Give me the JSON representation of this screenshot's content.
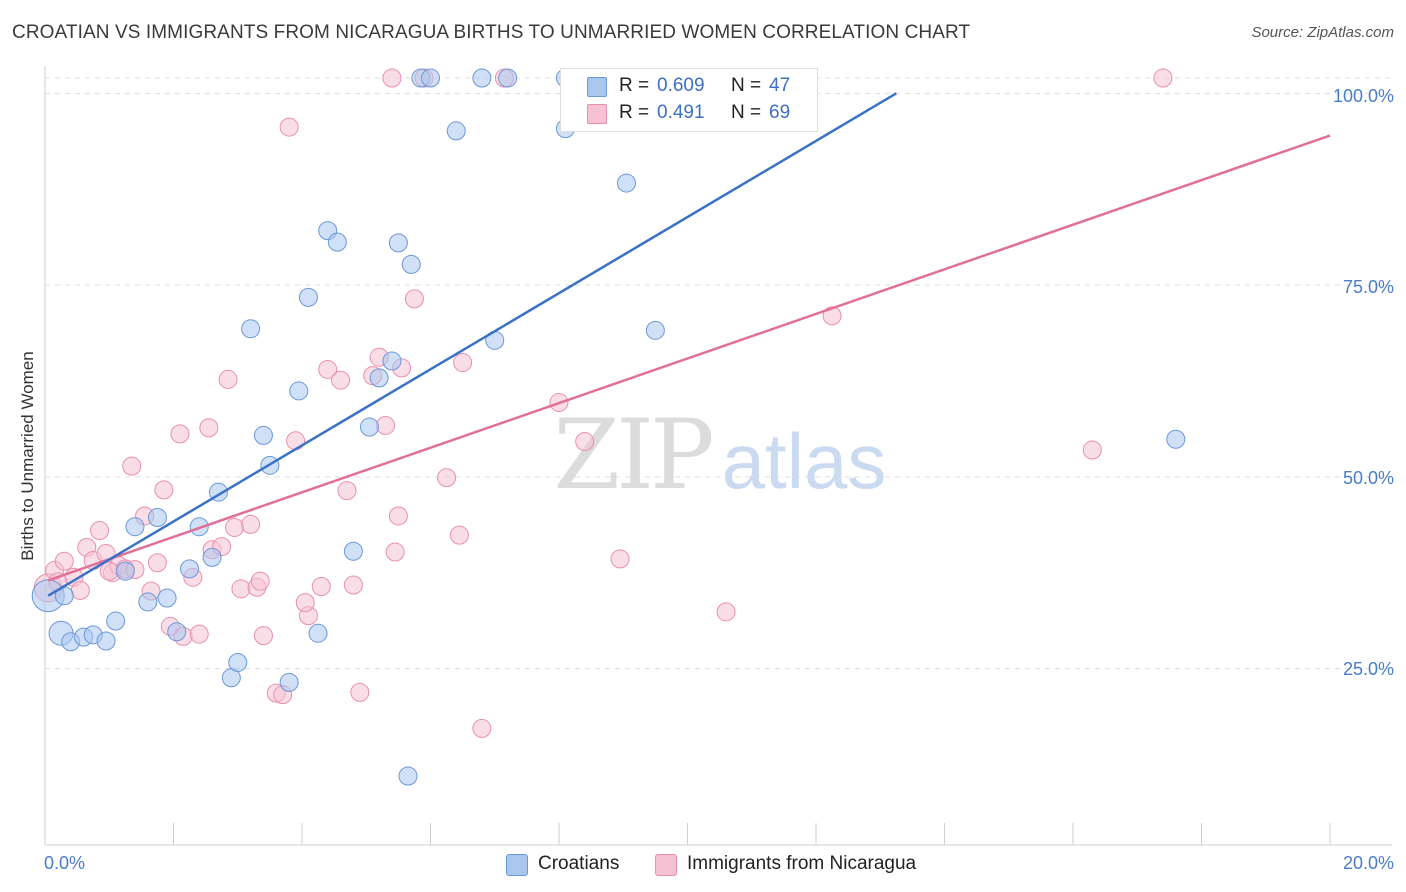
{
  "title": "CROATIAN VS IMMIGRANTS FROM NICARAGUA BIRTHS TO UNMARRIED WOMEN CORRELATION CHART",
  "source": "Source: ZipAtlas.com",
  "watermark": {
    "zip": "ZIP",
    "atlas": "atlas"
  },
  "legend": {
    "rows": [
      {
        "r_label": "R = ",
        "r_value": "0.609",
        "n_label": "N = ",
        "n_value": "47"
      },
      {
        "r_label": "R = ",
        "r_value": "0.491",
        "n_label": "N = ",
        "n_value": "69"
      }
    ]
  },
  "bottom_legend": [
    "Croatians",
    "Immigrants from Nicaragua"
  ],
  "colors": {
    "blue_fill": "#a9c6ee",
    "blue_stroke": "#6a98d8",
    "blue_line": "#3a72c8",
    "pink_fill": "#f6c2d3",
    "pink_stroke": "#e98fae",
    "pink_line": "#e0709a",
    "grid": "#dddddd",
    "tick_text": "#4a7cc9"
  },
  "chart_data": {
    "type": "scatter",
    "title": "CROATIAN VS IMMIGRANTS FROM NICARAGUA BIRTHS TO UNMARRIED WOMEN CORRELATION CHART",
    "xlabel": "",
    "ylabel": "Births to Unmarried Women",
    "xlim": [
      0,
      20
    ],
    "ylim": [
      2,
      102
    ],
    "x_tick_labels": [
      "0.0%",
      "20.0%"
    ],
    "y_ticks": [
      25,
      50,
      75,
      100
    ],
    "y_tick_labels": [
      "25.0%",
      "50.0%",
      "75.0%",
      "100.0%"
    ],
    "series": [
      {
        "name": "Croatians",
        "color": "#6a98d8",
        "trendline": {
          "x": [
            0.05,
            13.25
          ],
          "y": [
            34.5,
            100.0
          ]
        },
        "points": [
          [
            0.05,
            34.5,
            16
          ],
          [
            0.25,
            29.6,
            12
          ],
          [
            0.4,
            28.5,
            9
          ],
          [
            0.6,
            29.1,
            9
          ],
          [
            0.75,
            29.4,
            9
          ],
          [
            0.95,
            28.6,
            9
          ],
          [
            1.1,
            31.2,
            9
          ],
          [
            1.25,
            37.7,
            9
          ],
          [
            1.4,
            43.5,
            9
          ],
          [
            1.6,
            33.7,
            9
          ],
          [
            1.75,
            44.7,
            9
          ],
          [
            1.9,
            34.2,
            9
          ],
          [
            2.05,
            29.8,
            9
          ],
          [
            2.25,
            38.0,
            9
          ],
          [
            2.4,
            43.5,
            9
          ],
          [
            2.6,
            39.5,
            9
          ],
          [
            2.7,
            48.0,
            9
          ],
          [
            2.9,
            23.8,
            9
          ],
          [
            3.0,
            25.8,
            9
          ],
          [
            3.2,
            69.3,
            9
          ],
          [
            3.4,
            55.4,
            9
          ],
          [
            3.5,
            51.5,
            9
          ],
          [
            3.8,
            23.2,
            9
          ],
          [
            3.95,
            61.2,
            9
          ],
          [
            4.1,
            73.4,
            9
          ],
          [
            4.25,
            29.6,
            9
          ],
          [
            4.4,
            82.1,
            9
          ],
          [
            4.55,
            80.6,
            9
          ],
          [
            4.8,
            40.3,
            9
          ],
          [
            5.05,
            56.5,
            9
          ],
          [
            5.2,
            62.9,
            9
          ],
          [
            5.4,
            65.1,
            9
          ],
          [
            5.5,
            80.5,
            9
          ],
          [
            5.65,
            11.0,
            9
          ],
          [
            5.7,
            77.7,
            9
          ],
          [
            5.85,
            102.0,
            9
          ],
          [
            6.0,
            102.0,
            9
          ],
          [
            6.4,
            95.1,
            9
          ],
          [
            6.8,
            102.0,
            9
          ],
          [
            7.2,
            102.0,
            9
          ],
          [
            7.0,
            67.8,
            9
          ],
          [
            8.1,
            95.4,
            9
          ],
          [
            8.1,
            102.0,
            9
          ],
          [
            9.05,
            88.3,
            9
          ],
          [
            9.5,
            69.1,
            9
          ],
          [
            17.6,
            54.9,
            9
          ],
          [
            0.3,
            34.5,
            9
          ]
        ]
      },
      {
        "name": "Immigrants from Nicaragua",
        "color": "#e98fae",
        "trendline": {
          "x": [
            0.05,
            20.0
          ],
          "y": [
            36.5,
            94.5
          ]
        },
        "points": [
          [
            0.05,
            35.5,
            14
          ],
          [
            0.15,
            37.8,
            9
          ],
          [
            0.3,
            39.0,
            9
          ],
          [
            0.45,
            36.9,
            9
          ],
          [
            0.55,
            35.2,
            9
          ],
          [
            0.65,
            40.8,
            9
          ],
          [
            0.75,
            39.1,
            9
          ],
          [
            0.85,
            43.0,
            9
          ],
          [
            0.95,
            40.0,
            9
          ],
          [
            1.05,
            37.5,
            9
          ],
          [
            1.15,
            38.4,
            9
          ],
          [
            1.25,
            38.0,
            9
          ],
          [
            1.35,
            51.4,
            9
          ],
          [
            1.4,
            37.9,
            9
          ],
          [
            1.55,
            44.9,
            9
          ],
          [
            1.65,
            35.1,
            9
          ],
          [
            1.75,
            38.8,
            9
          ],
          [
            1.85,
            48.3,
            9
          ],
          [
            1.95,
            30.5,
            9
          ],
          [
            2.1,
            55.6,
            9
          ],
          [
            2.15,
            29.2,
            9
          ],
          [
            2.3,
            36.9,
            9
          ],
          [
            2.4,
            29.5,
            9
          ],
          [
            2.55,
            56.4,
            9
          ],
          [
            2.6,
            40.5,
            9
          ],
          [
            2.85,
            62.7,
            9
          ],
          [
            2.95,
            43.4,
            9
          ],
          [
            3.05,
            35.4,
            9
          ],
          [
            3.2,
            43.8,
            9
          ],
          [
            3.3,
            35.6,
            9
          ],
          [
            3.4,
            29.3,
            9
          ],
          [
            3.6,
            21.8,
            9
          ],
          [
            3.7,
            21.6,
            9
          ],
          [
            3.8,
            95.6,
            9
          ],
          [
            3.9,
            54.7,
            9
          ],
          [
            4.1,
            31.9,
            9
          ],
          [
            4.3,
            35.7,
            9
          ],
          [
            4.4,
            64.0,
            9
          ],
          [
            4.6,
            62.6,
            9
          ],
          [
            4.7,
            48.2,
            9
          ],
          [
            4.8,
            35.9,
            9
          ],
          [
            4.9,
            21.9,
            9
          ],
          [
            5.1,
            63.2,
            9
          ],
          [
            5.2,
            65.6,
            9
          ],
          [
            5.3,
            56.7,
            9
          ],
          [
            5.4,
            102.0,
            9
          ],
          [
            5.5,
            44.9,
            9
          ],
          [
            5.55,
            64.2,
            9
          ],
          [
            5.75,
            73.2,
            9
          ],
          [
            5.9,
            102.0,
            9
          ],
          [
            6.25,
            49.9,
            9
          ],
          [
            6.45,
            42.4,
            9
          ],
          [
            6.5,
            64.9,
            9
          ],
          [
            6.8,
            17.2,
            9
          ],
          [
            7.15,
            102.0,
            9
          ],
          [
            8.0,
            59.7,
            9
          ],
          [
            8.4,
            54.6,
            9
          ],
          [
            8.95,
            39.3,
            9
          ],
          [
            9.3,
            102.0,
            9
          ],
          [
            10.6,
            32.4,
            9
          ],
          [
            12.25,
            71.0,
            9
          ],
          [
            16.3,
            53.5,
            9
          ],
          [
            17.4,
            102.0,
            9
          ],
          [
            0.2,
            36.3,
            9
          ],
          [
            1.0,
            37.7,
            9
          ],
          [
            2.75,
            40.9,
            9
          ],
          [
            3.35,
            36.4,
            9
          ],
          [
            4.05,
            33.6,
            9
          ],
          [
            5.45,
            40.2,
            9
          ]
        ]
      }
    ]
  }
}
